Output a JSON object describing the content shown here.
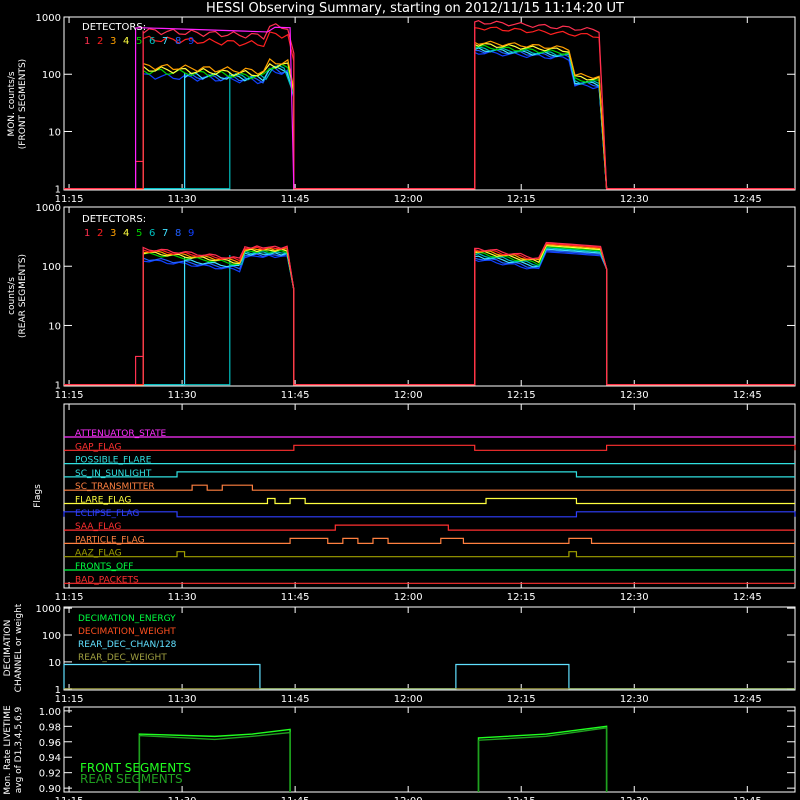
{
  "title": "HESSI Observing Summary, starting on 2012/11/15 11:14:20 UT",
  "time_ticks": [
    "11:15",
    "11:30",
    "11:45",
    "12:00",
    "12:15",
    "12:30",
    "12:45"
  ],
  "detectors_label": "DETECTORS:",
  "detector_numbers": [
    "1",
    "2",
    "3",
    "4",
    "5",
    "6",
    "7",
    "8",
    "9"
  ],
  "colors": {
    "det": [
      "#ff3050",
      "#ff2020",
      "#ffa000",
      "#ffff40",
      "#00d000",
      "#00c0c0",
      "#40e0ff",
      "#2060ff",
      "#1040ff"
    ],
    "front_accent": "#ff20ff"
  },
  "panels": {
    "front": {
      "ylabel": [
        "MON. counts/s",
        "(FRONT SEGMENTS)"
      ],
      "yticks": [
        "1",
        "10",
        "100",
        "1000"
      ]
    },
    "rear": {
      "ylabel": [
        "counts/s",
        "(REAR SEGMENTS)"
      ],
      "yticks": [
        "1",
        "10",
        "100",
        "1000"
      ]
    },
    "flags": {
      "ylabel": [
        "Flags"
      ]
    },
    "decimation": {
      "ylabel": [
        "DECIMATION",
        "CHANNEL or weight"
      ],
      "yticks": [
        "1",
        "10",
        "100",
        "1000"
      ]
    },
    "livetime": {
      "ylabel": [
        "Mon. Rate LIVETIME",
        "avg of D1,3,4,5,6,9"
      ],
      "yticks": [
        "0.90",
        "0.92",
        "0.94",
        "0.96",
        "0.98",
        "1.00"
      ]
    }
  },
  "flags": [
    {
      "name": "ATTENUATOR_STATE",
      "color": "#ff30ff"
    },
    {
      "name": "GAP_FLAG",
      "color": "#ff3030"
    },
    {
      "name": "POSSIBLE_FLARE",
      "color": "#30e0e0"
    },
    {
      "name": "SC_IN_SUNLIGHT",
      "color": "#30e0e0"
    },
    {
      "name": "SC_TRANSMITTER",
      "color": "#ff8040"
    },
    {
      "name": "FLARE_FLAG",
      "color": "#ffff40"
    },
    {
      "name": "ECLIPSE_FLAG",
      "color": "#3040ff"
    },
    {
      "name": "SAA_FLAG",
      "color": "#ff3030"
    },
    {
      "name": "PARTICLE_FLAG",
      "color": "#ff8040"
    },
    {
      "name": "AAZ_FLAG",
      "color": "#a0a000"
    },
    {
      "name": "FRONTS_OFF",
      "color": "#00ff40"
    },
    {
      "name": "BAD_PACKETS",
      "color": "#ff3030"
    }
  ],
  "decimation_legend": [
    {
      "name": "DECIMATION_ENERGY",
      "color": "#00ff40"
    },
    {
      "name": "DECIMATION_WEIGHT",
      "color": "#ff5020"
    },
    {
      "name": "REAR_DEC_CHAN/128",
      "color": "#60e0ff"
    },
    {
      "name": "REAR_DEC_WEIGHT",
      "color": "#a0a040"
    }
  ],
  "livetime_legend": [
    {
      "name": "FRONT SEGMENTS",
      "color": "#20ff20"
    },
    {
      "name": "REAR SEGMENTS",
      "color": "#20a020"
    }
  ],
  "chart_data": {
    "type": "line",
    "title": "HESSI Observing Summary, starting on 2012/11/15 11:14:20 UT",
    "x_unit": "UT time (minutes after 11:14:20)",
    "xlim": [
      0,
      97
    ],
    "front_counts": {
      "ylim_log": [
        1,
        1000
      ],
      "series_top_levels": [
        {
          "detector": "top envelope",
          "values": [
            [
              10,
              600
            ],
            [
              25,
              450
            ],
            [
              30,
              470
            ],
            [
              34,
              650
            ],
            [
              55,
              880
            ],
            [
              71,
              450
            ]
          ]
        },
        {
          "detector": "4",
          "values": [
            [
              10,
              420
            ],
            [
              25,
              320
            ],
            [
              30,
              330
            ],
            [
              34,
              500
            ],
            [
              55,
              430
            ],
            [
              71,
              320
            ]
          ]
        },
        {
          "detector": "mid group",
          "values": [
            [
              10,
              170
            ],
            [
              25,
              100
            ],
            [
              30,
              130
            ],
            [
              34,
              330
            ],
            [
              55,
              260
            ],
            [
              71,
              190
            ]
          ]
        }
      ],
      "observing_intervals": [
        [
          9.5,
          30.5
        ],
        [
          54.5,
          72
        ]
      ]
    },
    "rear_counts": {
      "ylim_log": [
        1,
        1000
      ],
      "values_range": [
        [
          9.5,
          170,
          100
        ],
        [
          25,
          200,
          200
        ],
        [
          54.5,
          180,
          150
        ],
        [
          64,
          250,
          170
        ]
      ],
      "observing_intervals": [
        [
          9.5,
          30.5
        ],
        [
          54.5,
          72
        ]
      ]
    },
    "flags_on_intervals": {
      "ATTENUATOR_STATE": [],
      "GAP_FLAG": [
        [
          30.5,
          54.5
        ],
        [
          72,
          97
        ]
      ],
      "POSSIBLE_FLARE": [],
      "SC_IN_SUNLIGHT": [
        [
          15,
          68
        ]
      ],
      "SC_TRANSMITTER": [
        [
          17,
          19
        ],
        [
          21,
          25
        ]
      ],
      "FLARE_FLAG": [
        [
          27,
          28
        ],
        [
          30,
          32
        ],
        [
          56,
          68
        ]
      ],
      "ECLIPSE_FLAG": [
        [
          0,
          15
        ],
        [
          68,
          97
        ]
      ],
      "SAA_FLAG": [
        [
          36,
          51
        ]
      ],
      "PARTICLE_FLAG": [
        [
          30,
          35
        ],
        [
          37,
          39
        ],
        [
          41,
          43
        ],
        [
          50,
          53
        ],
        [
          67,
          70
        ]
      ],
      "AAZ_FLAG": [
        [
          15,
          16
        ],
        [
          67,
          68
        ]
      ],
      "FRONTS_OFF": [],
      "BAD_PACKETS": []
    },
    "decimation": {
      "REAR_DEC_CHAN/128": [
        [
          0,
          26,
          8
        ],
        [
          26,
          52,
          1
        ],
        [
          52,
          67,
          8
        ],
        [
          67,
          97,
          1
        ]
      ]
    },
    "livetime": {
      "ylim": [
        0.9,
        1.0
      ],
      "front": [
        [
          10,
          0.97
        ],
        [
          20,
          0.967
        ],
        [
          25,
          0.97
        ],
        [
          30,
          0.976
        ],
        [
          55,
          0.965
        ],
        [
          64,
          0.97
        ],
        [
          72,
          0.98
        ]
      ],
      "rear": [
        [
          10,
          0.968
        ],
        [
          20,
          0.963
        ],
        [
          25,
          0.967
        ],
        [
          30,
          0.972
        ],
        [
          55,
          0.962
        ],
        [
          64,
          0.967
        ],
        [
          72,
          0.978
        ]
      ]
    }
  }
}
